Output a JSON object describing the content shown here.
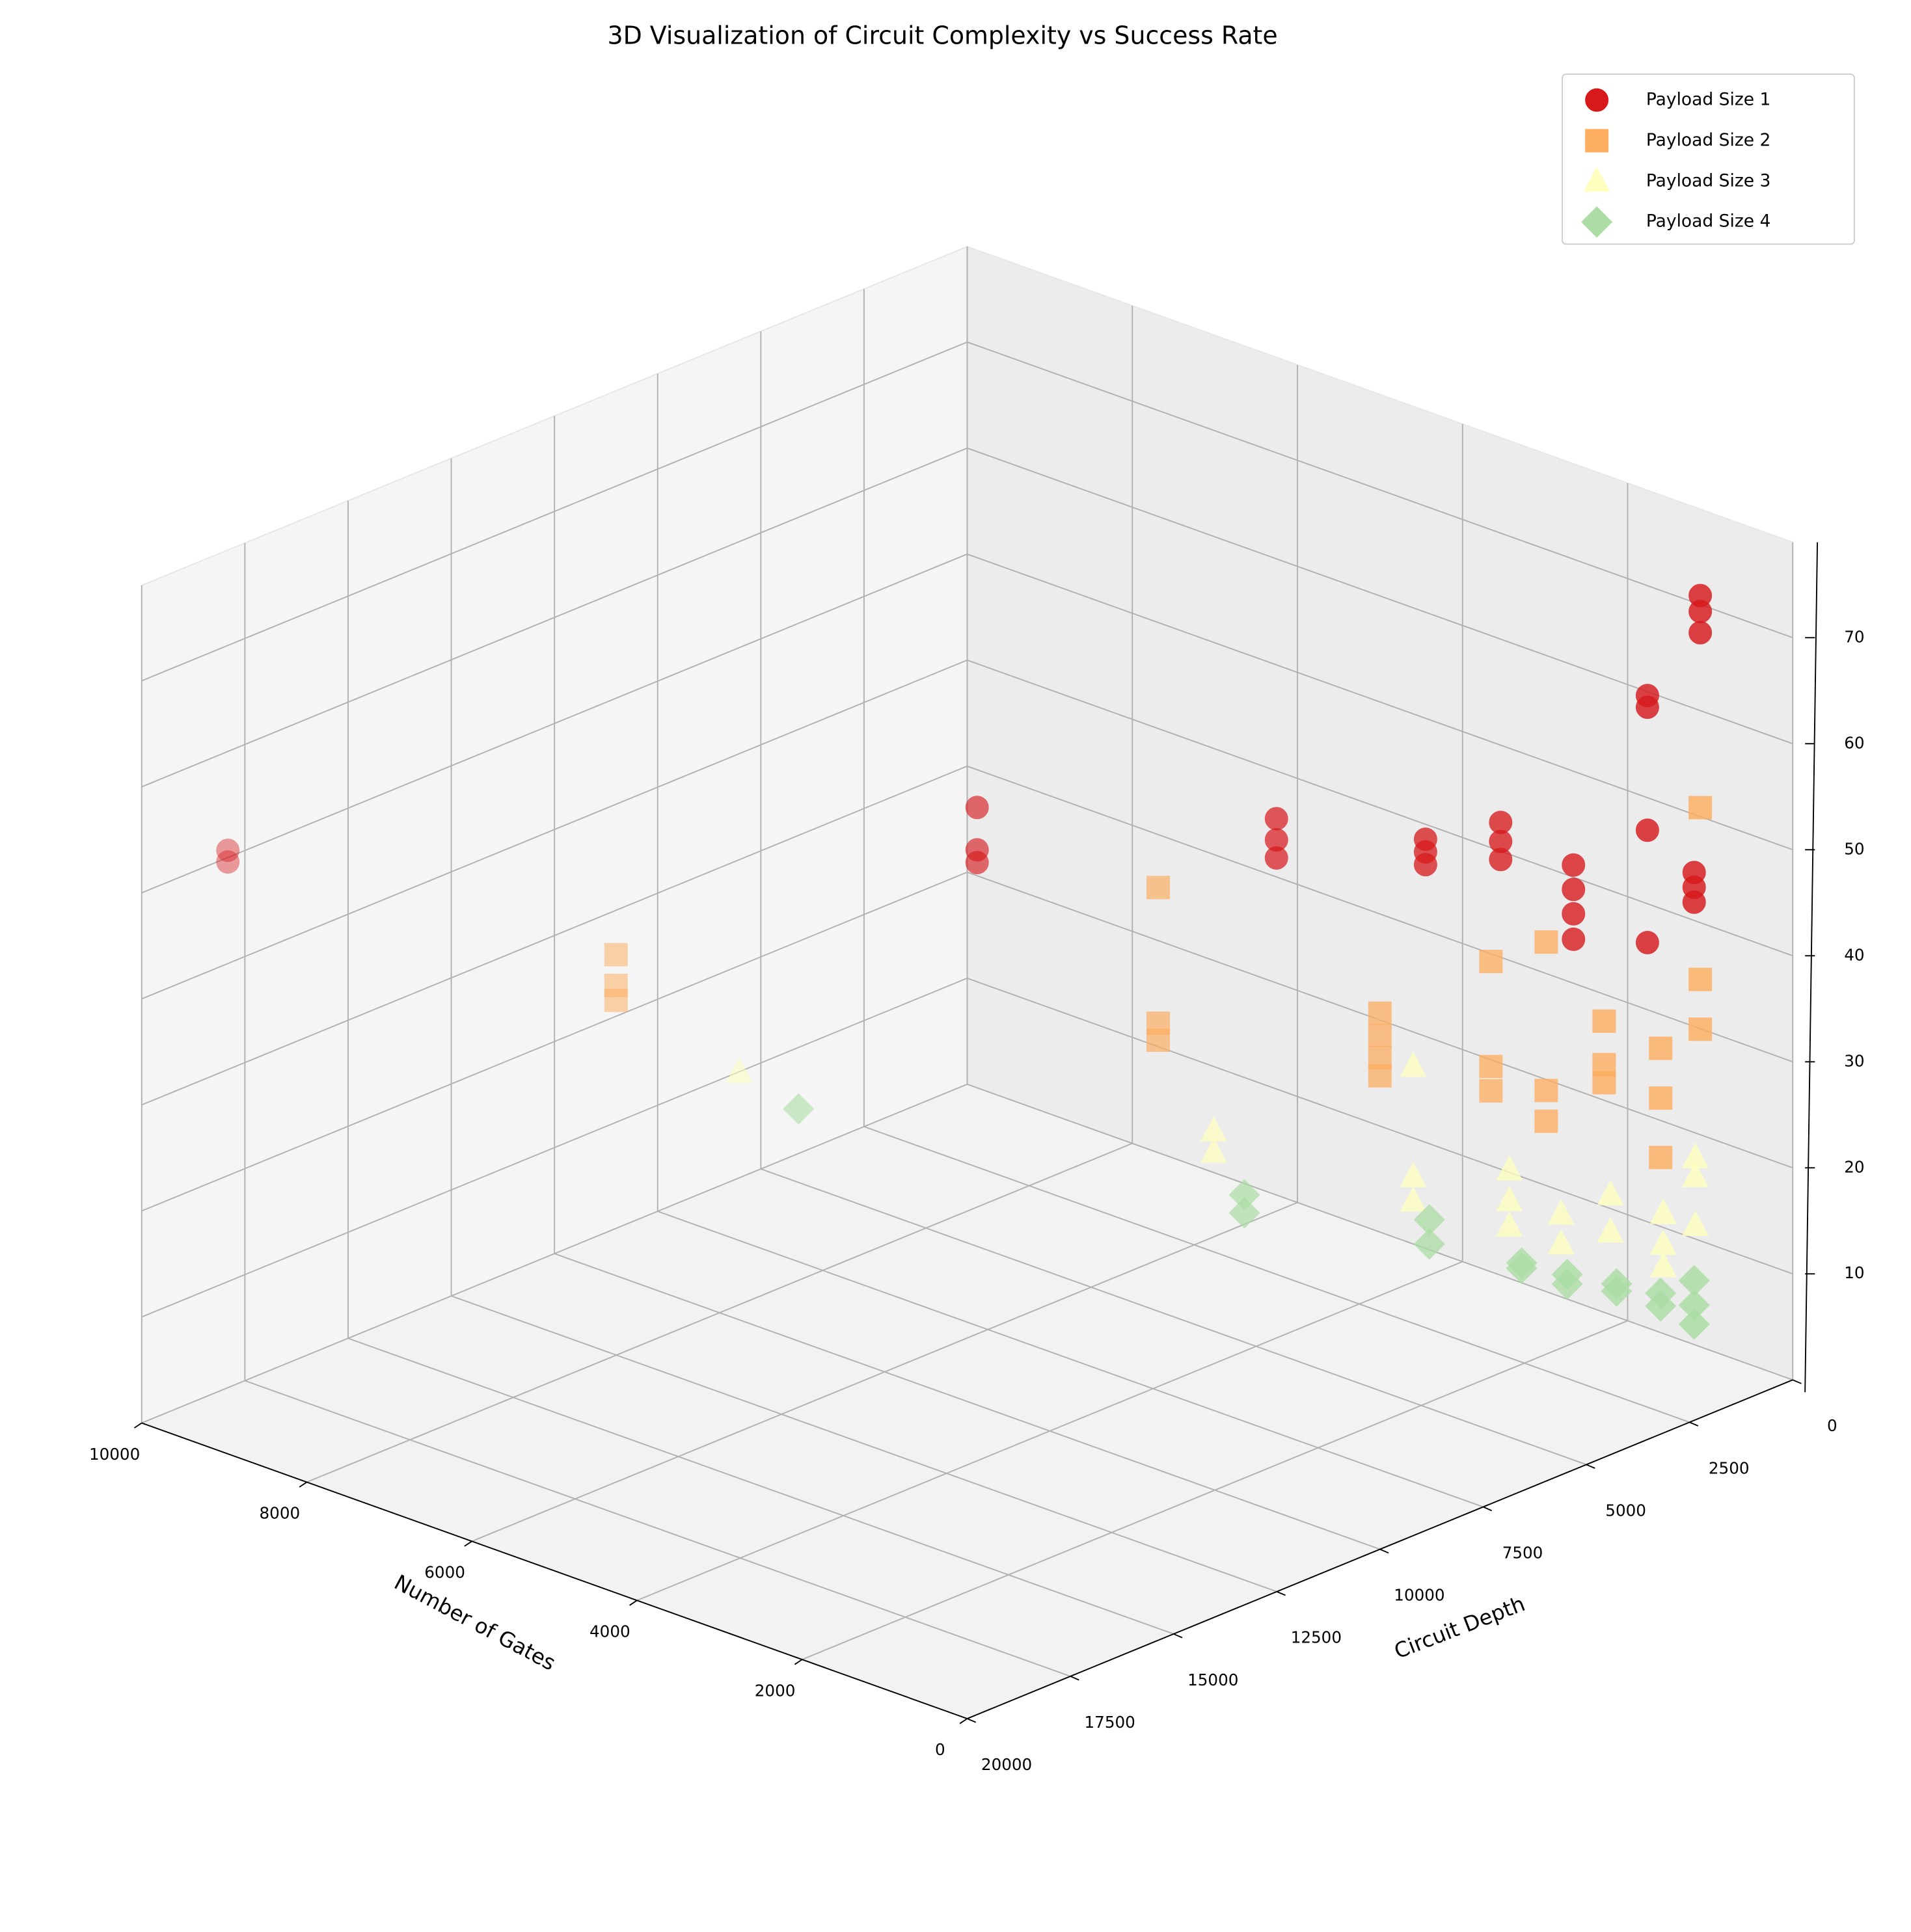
{
  "chart_data": {
    "type": "scatter3d",
    "title": "3D Visualization of Circuit Complexity vs Success Rate",
    "xlabel": "Number of Gates",
    "ylabel": "Circuit Depth",
    "xlim": [
      0,
      10000
    ],
    "xticks": [
      0,
      2000,
      4000,
      6000,
      8000,
      10000
    ],
    "ylim": [
      0,
      20000
    ],
    "yticks": [
      0,
      2500,
      5000,
      7500,
      10000,
      12500,
      15000,
      17500,
      20000
    ],
    "zlim": [
      0,
      79
    ],
    "zticks": [
      10,
      20,
      30,
      40,
      50,
      60,
      70
    ],
    "grid": true,
    "legend": "upper right",
    "series": [
      {
        "name": "Payload Size 1",
        "color": "#d7191c",
        "marker": "circle",
        "x": [
          9478,
          9478,
          4940,
          4940,
          4940,
          3127,
          3127,
          3127,
          2224,
          2224,
          2224,
          1769,
          1769,
          1769,
          1328,
          1328,
          1328,
          1328,
          880,
          880,
          880,
          880,
          597,
          597,
          597,
          560,
          560,
          560
        ],
        "y": [
          18956,
          18956,
          9880,
          9880,
          9880,
          6254,
          6254,
          6254,
          4448,
          4448,
          4448,
          3538,
          3538,
          3538,
          2656,
          2656,
          2656,
          2656,
          1760,
          1760,
          1760,
          1760,
          1194,
          1194,
          1194,
          1120,
          1120,
          1120
        ],
        "values": [
          53.8,
          52.7,
          56.0,
          52.0,
          50.8,
          54.2,
          52.2,
          50.5,
          51.9,
          50.7,
          49.5,
          53.3,
          51.5,
          49.8,
          49.1,
          46.8,
          44.5,
          42.1,
          64.9,
          63.8,
          52.2,
          41.6,
          48.1,
          46.7,
          45.3,
          74.2,
          72.7,
          70.7
        ]
      },
      {
        "name": "Payload Size 2",
        "color": "#fdae61",
        "marker": "square",
        "x": [
          7127,
          7127,
          7127,
          3843,
          3843,
          3843,
          2500,
          2500,
          2500,
          2500,
          1828,
          1828,
          1828,
          1493,
          1493,
          1493,
          1142,
          1142,
          1142,
          800,
          800,
          800,
          560,
          560,
          560
        ],
        "y": [
          14254,
          14254,
          14254,
          7686,
          7686,
          7686,
          5000,
          5000,
          5000,
          5000,
          3656,
          3656,
          3656,
          2986,
          2986,
          2986,
          2284,
          2284,
          2284,
          1600,
          1600,
          1600,
          1120,
          1120,
          1120
        ],
        "values": [
          43.0,
          40.1,
          38.7,
          48.0,
          35.2,
          33.6,
          35.6,
          33.5,
          31.4,
          29.7,
          40.2,
          30.3,
          28.0,
          41.9,
          27.9,
          25.0,
          34.3,
          30.2,
          28.5,
          31.6,
          26.9,
          21.3,
          54.2,
          38.0,
          33.3
        ]
      },
      {
        "name": "Payload Size 3",
        "color": "#ffffbf",
        "marker": "triangle",
        "x": [
          6381,
          3507,
          3507,
          2299,
          2299,
          2299,
          1716,
          1716,
          1716,
          1403,
          1403,
          1104,
          1104,
          784,
          784,
          784,
          590,
          590,
          590
        ],
        "y": [
          12762,
          7014,
          7014,
          4598,
          4598,
          4598,
          3432,
          3432,
          3432,
          2806,
          2806,
          2208,
          2208,
          1568,
          1568,
          1568,
          1180,
          1180,
          1180
        ],
        "values": [
          31.6,
          24.9,
          22.9,
          30.5,
          20.1,
          17.8,
          20.5,
          17.6,
          15.2,
          16.2,
          13.4,
          17.9,
          14.4,
          16.0,
          13.1,
          11.0,
          21.2,
          19.4,
          14.8
        ]
      },
      {
        "name": "Payload Size 4",
        "color": "#abdda4",
        "marker": "diamond",
        "x": [
          6022,
          3321,
          3321,
          2201,
          2201,
          1642,
          1642,
          1366,
          1366,
          1067,
          1067,
          800,
          800,
          597,
          597,
          597
        ],
        "y": [
          12044,
          6642,
          6642,
          4402,
          4402,
          3284,
          3284,
          2732,
          2732,
          2134,
          2134,
          1600,
          1600,
          1194,
          1194,
          1194
        ],
        "values": [
          28.0,
          18.8,
          17.1,
          16.0,
          13.7,
          11.7,
          11.2,
          10.5,
          9.6,
          9.5,
          8.8,
          8.5,
          7.3,
          9.6,
          7.3,
          5.5
        ]
      }
    ]
  }
}
